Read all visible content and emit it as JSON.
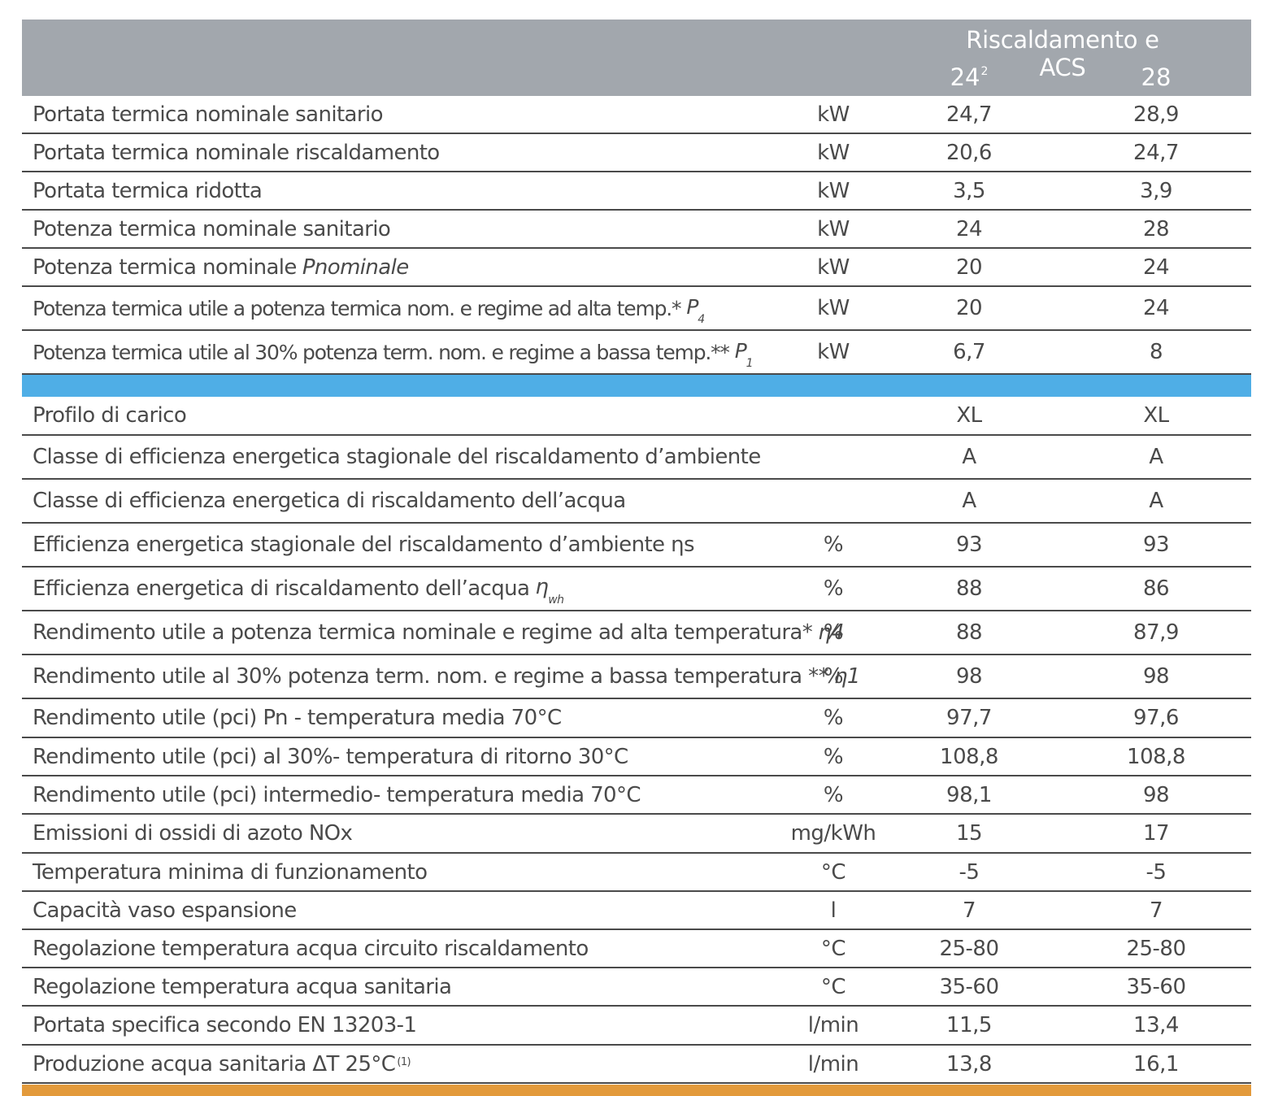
{
  "header": {
    "title": "Riscaldamento e ACS",
    "model1": "24",
    "model1_note": "2",
    "model2": "28"
  },
  "section1": [
    {
      "label": "Portata termica nominale sanitario",
      "unit": "kW",
      "v1": "24,7",
      "v2": "28,9"
    },
    {
      "label": "Portata termica nominale riscaldamento",
      "unit": "kW",
      "v1": "20,6",
      "v2": "24,7"
    },
    {
      "label": "Portata termica ridotta",
      "unit": "kW",
      "v1": "3,5",
      "v2": "3,9"
    },
    {
      "label": "Potenza termica nominale sanitario",
      "unit": "kW",
      "v1": "24",
      "v2": "28"
    },
    {
      "label": "Potenza termica nominale",
      "symbol": "Pnominale",
      "unit": "kW",
      "v1": "20",
      "v2": "24"
    },
    {
      "label": "Potenza termica utile a potenza termica nom. e regime ad alta temp.*",
      "symbol": "P",
      "symbol_sub": "4",
      "unit": "kW",
      "v1": "20",
      "v2": "24"
    },
    {
      "label": "Potenza termica utile al 30% potenza term. nom. e regime a bassa temp.**",
      "symbol": "P",
      "symbol_sub": "1",
      "unit": "kW",
      "v1": "6,7",
      "v2": "8"
    }
  ],
  "section2": [
    {
      "label": "Profilo di carico",
      "unit": "",
      "v1": "XL",
      "v2": "XL"
    },
    {
      "label": "Classe di efficienza energetica stagionale del riscaldamento d’ambiente",
      "unit": "",
      "v1": "A",
      "v2": "A"
    },
    {
      "label": "Classe di efficienza energetica di riscaldamento dell’acqua",
      "unit": "",
      "v1": "A",
      "v2": "A"
    },
    {
      "label": "Efficienza energetica stagionale del riscaldamento d’ambiente ηs",
      "unit": "%",
      "v1": "93",
      "v2": "93"
    },
    {
      "label": "Efficienza energetica di riscaldamento dell’acqua",
      "symbol": "η",
      "symbol_sub": "wh",
      "unit": "%",
      "v1": "88",
      "v2": "86"
    },
    {
      "label": "Rendimento utile a potenza termica nominale e regime ad alta temperatura*",
      "symbol": "η4",
      "unit": "%",
      "v1": "88",
      "v2": "87,9"
    },
    {
      "label": "Rendimento utile al 30% potenza term. nom. e regime a bassa temperatura **",
      "symbol": "η1",
      "unit": "%",
      "v1": "98",
      "v2": "98"
    },
    {
      "label": "Rendimento utile (pci) Pn - temperatura media 70°C",
      "unit": "%",
      "v1": "97,7",
      "v2": "97,6"
    },
    {
      "label": "Rendimento utile (pci) al 30%- temperatura di ritorno 30°C",
      "unit": "%",
      "v1": "108,8",
      "v2": "108,8"
    },
    {
      "label": "Rendimento utile (pci) intermedio- temperatura media 70°C",
      "unit": "%",
      "v1": "98,1",
      "v2": "98"
    },
    {
      "label": "Emissioni di ossidi di azoto NOx",
      "unit": "mg/kWh",
      "v1": "15",
      "v2": "17"
    },
    {
      "label": "Temperatura minima di funzionamento",
      "unit": "°C",
      "v1": "-5",
      "v2": "-5"
    },
    {
      "label": "Capacità vaso espansione",
      "unit": "l",
      "v1": "7",
      "v2": "7"
    },
    {
      "label": "Regolazione temperatura acqua circuito riscaldamento",
      "unit": "°C",
      "v1": "25-80",
      "v2": "25-80"
    },
    {
      "label": "Regolazione temperatura acqua sanitaria",
      "unit": "°C",
      "v1": "35-60",
      "v2": "35-60"
    },
    {
      "label": "Portata specifica secondo EN 13203-1",
      "unit": "l/min",
      "v1": "11,5",
      "v2": "13,4"
    },
    {
      "label": "Produzione acqua sanitaria ΔT 25°C",
      "footnote": "(1)",
      "unit": "l/min",
      "v1": "13,8",
      "v2": "16,1"
    }
  ],
  "colors": {
    "header_bg": "#a2a7ad",
    "divider_band": "#4faee6",
    "bottom_band": "#e39a3b",
    "text": "#4a4a4a"
  }
}
